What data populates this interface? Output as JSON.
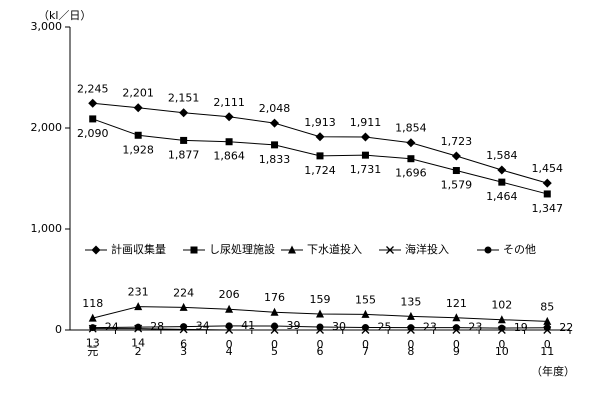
{
  "chart_data": {
    "type": "line",
    "y_unit_label": "（kl／日）",
    "x_unit_label": "（年度）",
    "categories": [
      "元",
      "2",
      "3",
      "4",
      "5",
      "6",
      "7",
      "8",
      "9",
      "10",
      "11"
    ],
    "series": [
      {
        "name": "計画収集量",
        "color": "#000000",
        "marker": "diamond",
        "label_position": "above",
        "values": [
          2245,
          2201,
          2151,
          2111,
          2048,
          1913,
          1911,
          1854,
          1723,
          1584,
          1454
        ],
        "value_labels": [
          "2,245",
          "2,201",
          "2,151",
          "2,111",
          "2,048",
          "1,913",
          "1,911",
          "1,854",
          "1,723",
          "1,584",
          "1,454"
        ]
      },
      {
        "name": "し尿処理施設",
        "color": "#000000",
        "marker": "square",
        "label_position": "below",
        "values": [
          2090,
          1928,
          1877,
          1864,
          1833,
          1724,
          1731,
          1696,
          1579,
          1464,
          1347
        ],
        "value_labels": [
          "2,090",
          "1,928",
          "1,877",
          "1,864",
          "1,833",
          "1,724",
          "1,731",
          "1,696",
          "1,579",
          "1,464",
          "1,347"
        ]
      },
      {
        "name": "下水道投入",
        "color": "#000000",
        "marker": "triangle",
        "label_position": "above",
        "values": [
          118,
          231,
          224,
          206,
          176,
          159,
          155,
          135,
          121,
          102,
          85
        ]
      },
      {
        "name": "海洋投入",
        "color": "#000000",
        "marker": "cross",
        "label_position": "below",
        "values": [
          13,
          14,
          6,
          0,
          0,
          0,
          0,
          0,
          0,
          0,
          0
        ]
      },
      {
        "name": "その他",
        "color": "#000000",
        "marker": "circle",
        "label_position": "right",
        "values": [
          24,
          28,
          34,
          41,
          39,
          30,
          25,
          23,
          23,
          19,
          22
        ]
      }
    ],
    "ylim": [
      0,
      3000
    ],
    "yticks": [
      {
        "value": 0,
        "label": "0"
      },
      {
        "value": 1000,
        "label": "1,000"
      },
      {
        "value": 2000,
        "label": "2,000"
      },
      {
        "value": 3000,
        "label": "3,000"
      }
    ],
    "grid": false,
    "legend": "center"
  }
}
